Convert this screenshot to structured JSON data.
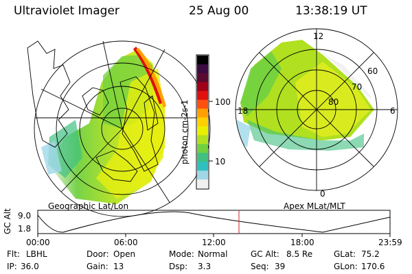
{
  "header": {
    "instrument": "Ultraviolet Imager",
    "date": "25 Aug 00",
    "time": "13:38:19 UT"
  },
  "left_panel": {
    "label": "Geographic Lat/Lon"
  },
  "right_panel": {
    "label": "Apex MLat/MLT",
    "mlt_labels": [
      "12",
      "18",
      "6",
      "0"
    ],
    "lat_labels": [
      "60",
      "70",
      "80"
    ]
  },
  "colorbar": {
    "label": "photon cm-2s-1",
    "ticks": [
      "100",
      "10"
    ],
    "colors": [
      "#000000",
      "#3a0a40",
      "#5a0a30",
      "#a00018",
      "#e01010",
      "#ff5010",
      "#ffa000",
      "#ffd000",
      "#e8f000",
      "#b0e020",
      "#70d040",
      "#40c080",
      "#30c0c0",
      "#a0d8e8",
      "#f0f0f0"
    ]
  },
  "altitude_plot": {
    "ylabel": "GC Alt",
    "yticks": [
      "9.0",
      "1.8"
    ],
    "xticks": [
      "00:00",
      "06:00",
      "12:00",
      "18:00",
      "23:59"
    ],
    "marker_color": "#d02020"
  },
  "info": {
    "row1": [
      {
        "key": "Flt:",
        "value": "LBHL"
      },
      {
        "key": "Door:",
        "value": "Open"
      },
      {
        "key": "Mode:",
        "value": "Normal"
      },
      {
        "key": "GC Alt:",
        "value": "8.5 Re"
      },
      {
        "key": "GLat:",
        "value": "75.2"
      }
    ],
    "row2": [
      {
        "key": "IP:",
        "value": "36.0"
      },
      {
        "key": "Gain:",
        "value": "13"
      },
      {
        "key": "Dsp:",
        "value": "3.3"
      },
      {
        "key": "Seq:",
        "value": "39"
      },
      {
        "key": "GLon:",
        "value": "170.6"
      }
    ]
  }
}
